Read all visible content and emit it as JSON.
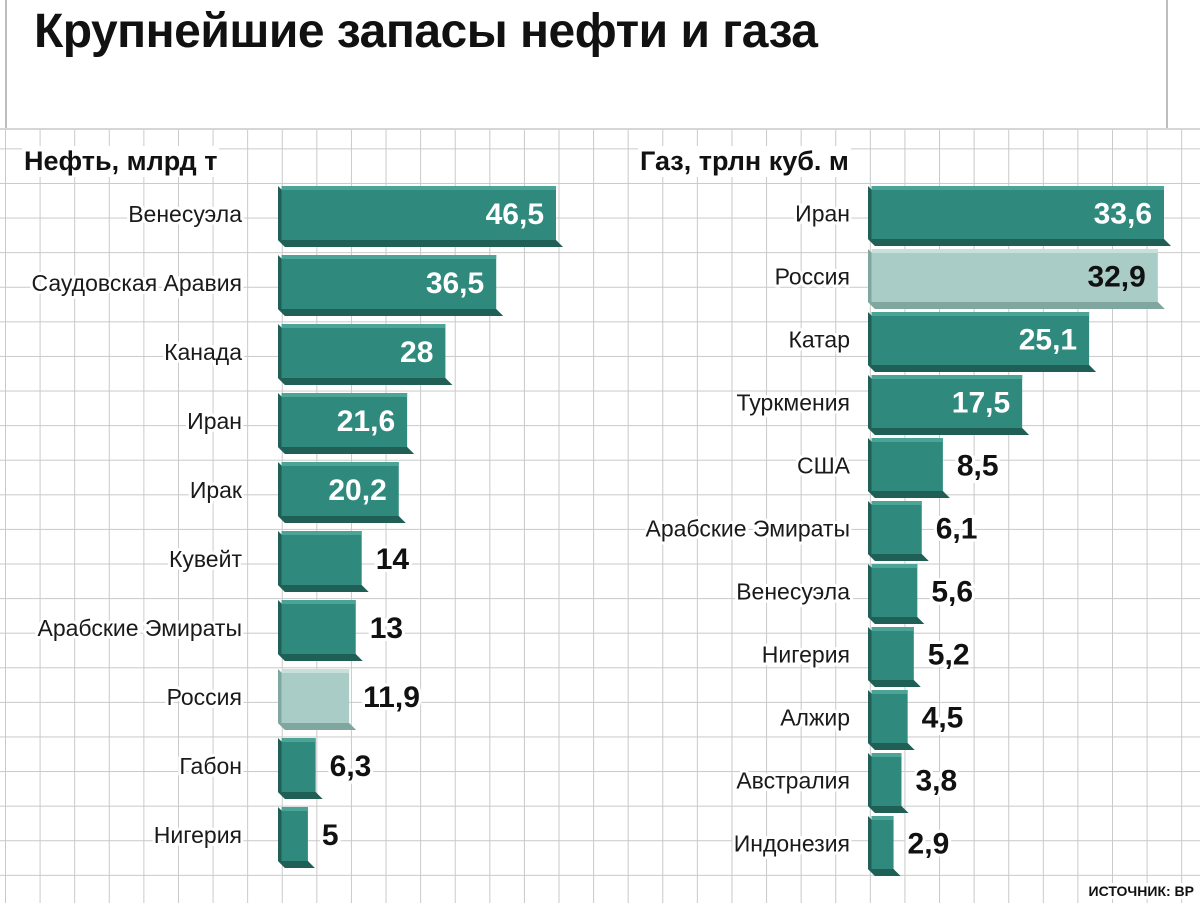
{
  "title": "Крупнейшие запасы нефти и газа",
  "source": "ИСТОЧНИК: BP",
  "colors": {
    "bar": "#2f8a7d",
    "bar_side": "#1f5f56",
    "bar_top": "#4aa597",
    "highlight": "#a9ccc6",
    "highlight_side": "#7fa7a0",
    "highlight_top": "#c7e0dc",
    "label_in": "#ffffff",
    "label_out": "#111111"
  },
  "chart_data": [
    {
      "type": "bar",
      "orientation": "horizontal",
      "title": "Нефть, млрд т",
      "categories": [
        "Венесуэла",
        "Саудовская Аравия",
        "Канада",
        "Иран",
        "Ирак",
        "Кувейт",
        "Арабские Эмираты",
        "Россия",
        "Габон",
        "Нигерия"
      ],
      "values": [
        46.5,
        36.5,
        28,
        21.6,
        20.2,
        14,
        13,
        11.9,
        6.3,
        5
      ],
      "value_labels": [
        "46,5",
        "36,5",
        "28",
        "21,6",
        "20,2",
        "14",
        "13",
        "11,9",
        "6,3",
        "5"
      ],
      "highlight": "Россия",
      "xlim": [
        0,
        46.5
      ]
    },
    {
      "type": "bar",
      "orientation": "horizontal",
      "title": "Газ, трлн куб. м",
      "categories": [
        "Иран",
        "Россия",
        "Катар",
        "Туркмения",
        "США",
        "Арабские Эмираты",
        "Венесуэла",
        "Нигерия",
        "Алжир",
        "Австралия",
        "Индонезия"
      ],
      "values": [
        33.6,
        32.9,
        25.1,
        17.5,
        8.5,
        6.1,
        5.6,
        5.2,
        4.5,
        3.8,
        2.9
      ],
      "value_labels": [
        "33,6",
        "32,9",
        "25,1",
        "17,5",
        "8,5",
        "6,1",
        "5,6",
        "5,2",
        "4,5",
        "3,8",
        "2,9"
      ],
      "highlight": "Россия",
      "xlim": [
        0,
        33.6
      ]
    }
  ]
}
